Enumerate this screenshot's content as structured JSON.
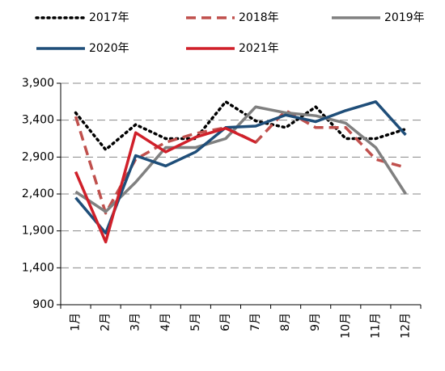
{
  "chart_data": {
    "type": "line",
    "categories": [
      "1月",
      "2月",
      "3月",
      "4月",
      "5月",
      "6月",
      "7月",
      "8月",
      "9月",
      "10月",
      "11月",
      "12月"
    ],
    "series": [
      {
        "name": "2017年",
        "color": "#000000",
        "style": "dotted",
        "values": [
          3500,
          3000,
          3340,
          3150,
          3150,
          3650,
          3390,
          3300,
          3580,
          3150,
          3150,
          3280
        ]
      },
      {
        "name": "2018年",
        "color": "#c0504d",
        "style": "dashed",
        "values": [
          3450,
          2140,
          2870,
          3100,
          3220,
          3300,
          3100,
          3530,
          3300,
          3300,
          2870,
          2760
        ]
      },
      {
        "name": "2019年",
        "color": "#808080",
        "style": "solid",
        "values": [
          2430,
          2160,
          2560,
          3030,
          3030,
          3150,
          3580,
          3500,
          3460,
          3360,
          3030,
          2400
        ]
      },
      {
        "name": "2020年",
        "color": "#1f4e79",
        "style": "solid",
        "values": [
          2350,
          1870,
          2920,
          2780,
          2970,
          3300,
          3320,
          3470,
          3380,
          3530,
          3650,
          3200
        ]
      },
      {
        "name": "2021年",
        "color": "#d0202a",
        "style": "solid",
        "values": [
          2700,
          1750,
          3230,
          2970,
          3170,
          3290,
          3100,
          null,
          null,
          null,
          null,
          null
        ]
      }
    ],
    "ylim": [
      900,
      3900
    ],
    "yticks": [
      {
        "value": 900,
        "label": "900"
      },
      {
        "value": 1400,
        "label": "1,400"
      },
      {
        "value": 1900,
        "label": "1,900"
      },
      {
        "value": 2400,
        "label": "2,400"
      },
      {
        "value": 2900,
        "label": "2,900"
      },
      {
        "value": 3400,
        "label": "3,400"
      },
      {
        "value": 3900,
        "label": "3,900"
      }
    ],
    "grid": true
  }
}
